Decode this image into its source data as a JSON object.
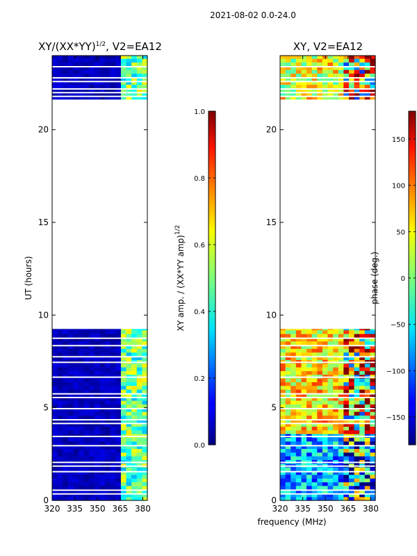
{
  "figure": {
    "suptitle": "2021-08-02 0.0-24.0",
    "xlabel_shared": "frequency (MHz)"
  },
  "chart_data": [
    {
      "type": "heatmap",
      "title_main": "XY/(XX*YY)",
      "title_exp": "1/2",
      "title_suffix": ", V2=EA12",
      "ylabel": "UT (hours)",
      "xlim": [
        320,
        383
      ],
      "ylim": [
        0,
        24
      ],
      "xticks": [
        "320",
        "335",
        "350",
        "365",
        "380"
      ],
      "xtick_values": [
        320,
        335,
        350,
        365,
        380
      ],
      "yticks": [
        "0",
        "5",
        "10",
        "15",
        "20"
      ],
      "ytick_values": [
        0,
        5,
        10,
        15,
        20
      ],
      "data_ranges_hours": [
        [
          0,
          9.25
        ],
        [
          21.65,
          24
        ]
      ],
      "gaps_hours": [
        0.35,
        0.55,
        1.55,
        1.85,
        2.05,
        2.95,
        3.45,
        4.15,
        4.35,
        4.95,
        5.55,
        5.75,
        6.65,
        7.45,
        7.75,
        8.35,
        8.75,
        21.8,
        22.0,
        22.2,
        22.6,
        22.8,
        23.4
      ],
      "colorbar": {
        "label_main": "XY amp. / (XX*YY amp)",
        "label_exp": "1/2",
        "range": [
          0.0,
          1.0
        ],
        "ticks": [
          "0.0",
          "0.2",
          "0.4",
          "0.6",
          "0.8",
          "1.0"
        ],
        "tick_values": [
          0.0,
          0.2,
          0.4,
          0.6,
          0.8,
          1.0
        ],
        "colormap": "jet"
      }
    },
    {
      "type": "heatmap",
      "title": "XY, V2=EA12",
      "xlim": [
        320,
        383
      ],
      "ylim": [
        0,
        24
      ],
      "xticks": [
        "320",
        "335",
        "350",
        "365",
        "380"
      ],
      "xtick_values": [
        320,
        335,
        350,
        365,
        380
      ],
      "yticks": [
        "0",
        "5",
        "10",
        "15",
        "20"
      ],
      "ytick_values": [
        0,
        5,
        10,
        15,
        20
      ],
      "data_ranges_hours": [
        [
          0,
          9.25
        ],
        [
          21.65,
          24
        ]
      ],
      "gaps_hours": [
        0.35,
        0.55,
        1.55,
        1.85,
        2.05,
        2.95,
        3.45,
        4.15,
        4.35,
        4.95,
        5.55,
        5.75,
        6.65,
        7.45,
        7.75,
        8.35,
        8.75,
        21.8,
        22.0,
        22.2,
        22.6,
        22.8,
        23.4
      ],
      "colorbar": {
        "label": "phase (deg.)",
        "range": [
          -180,
          180
        ],
        "ticks": [
          "−150",
          "−100",
          "−50",
          "0",
          "50",
          "100",
          "150"
        ],
        "tick_values": [
          -150,
          -100,
          -50,
          0,
          50,
          100,
          150
        ],
        "colormap": "jet"
      }
    }
  ],
  "colors": {
    "jet_low": "#00007f",
    "jet_high": "#7f0000",
    "background": "#ffffff"
  }
}
